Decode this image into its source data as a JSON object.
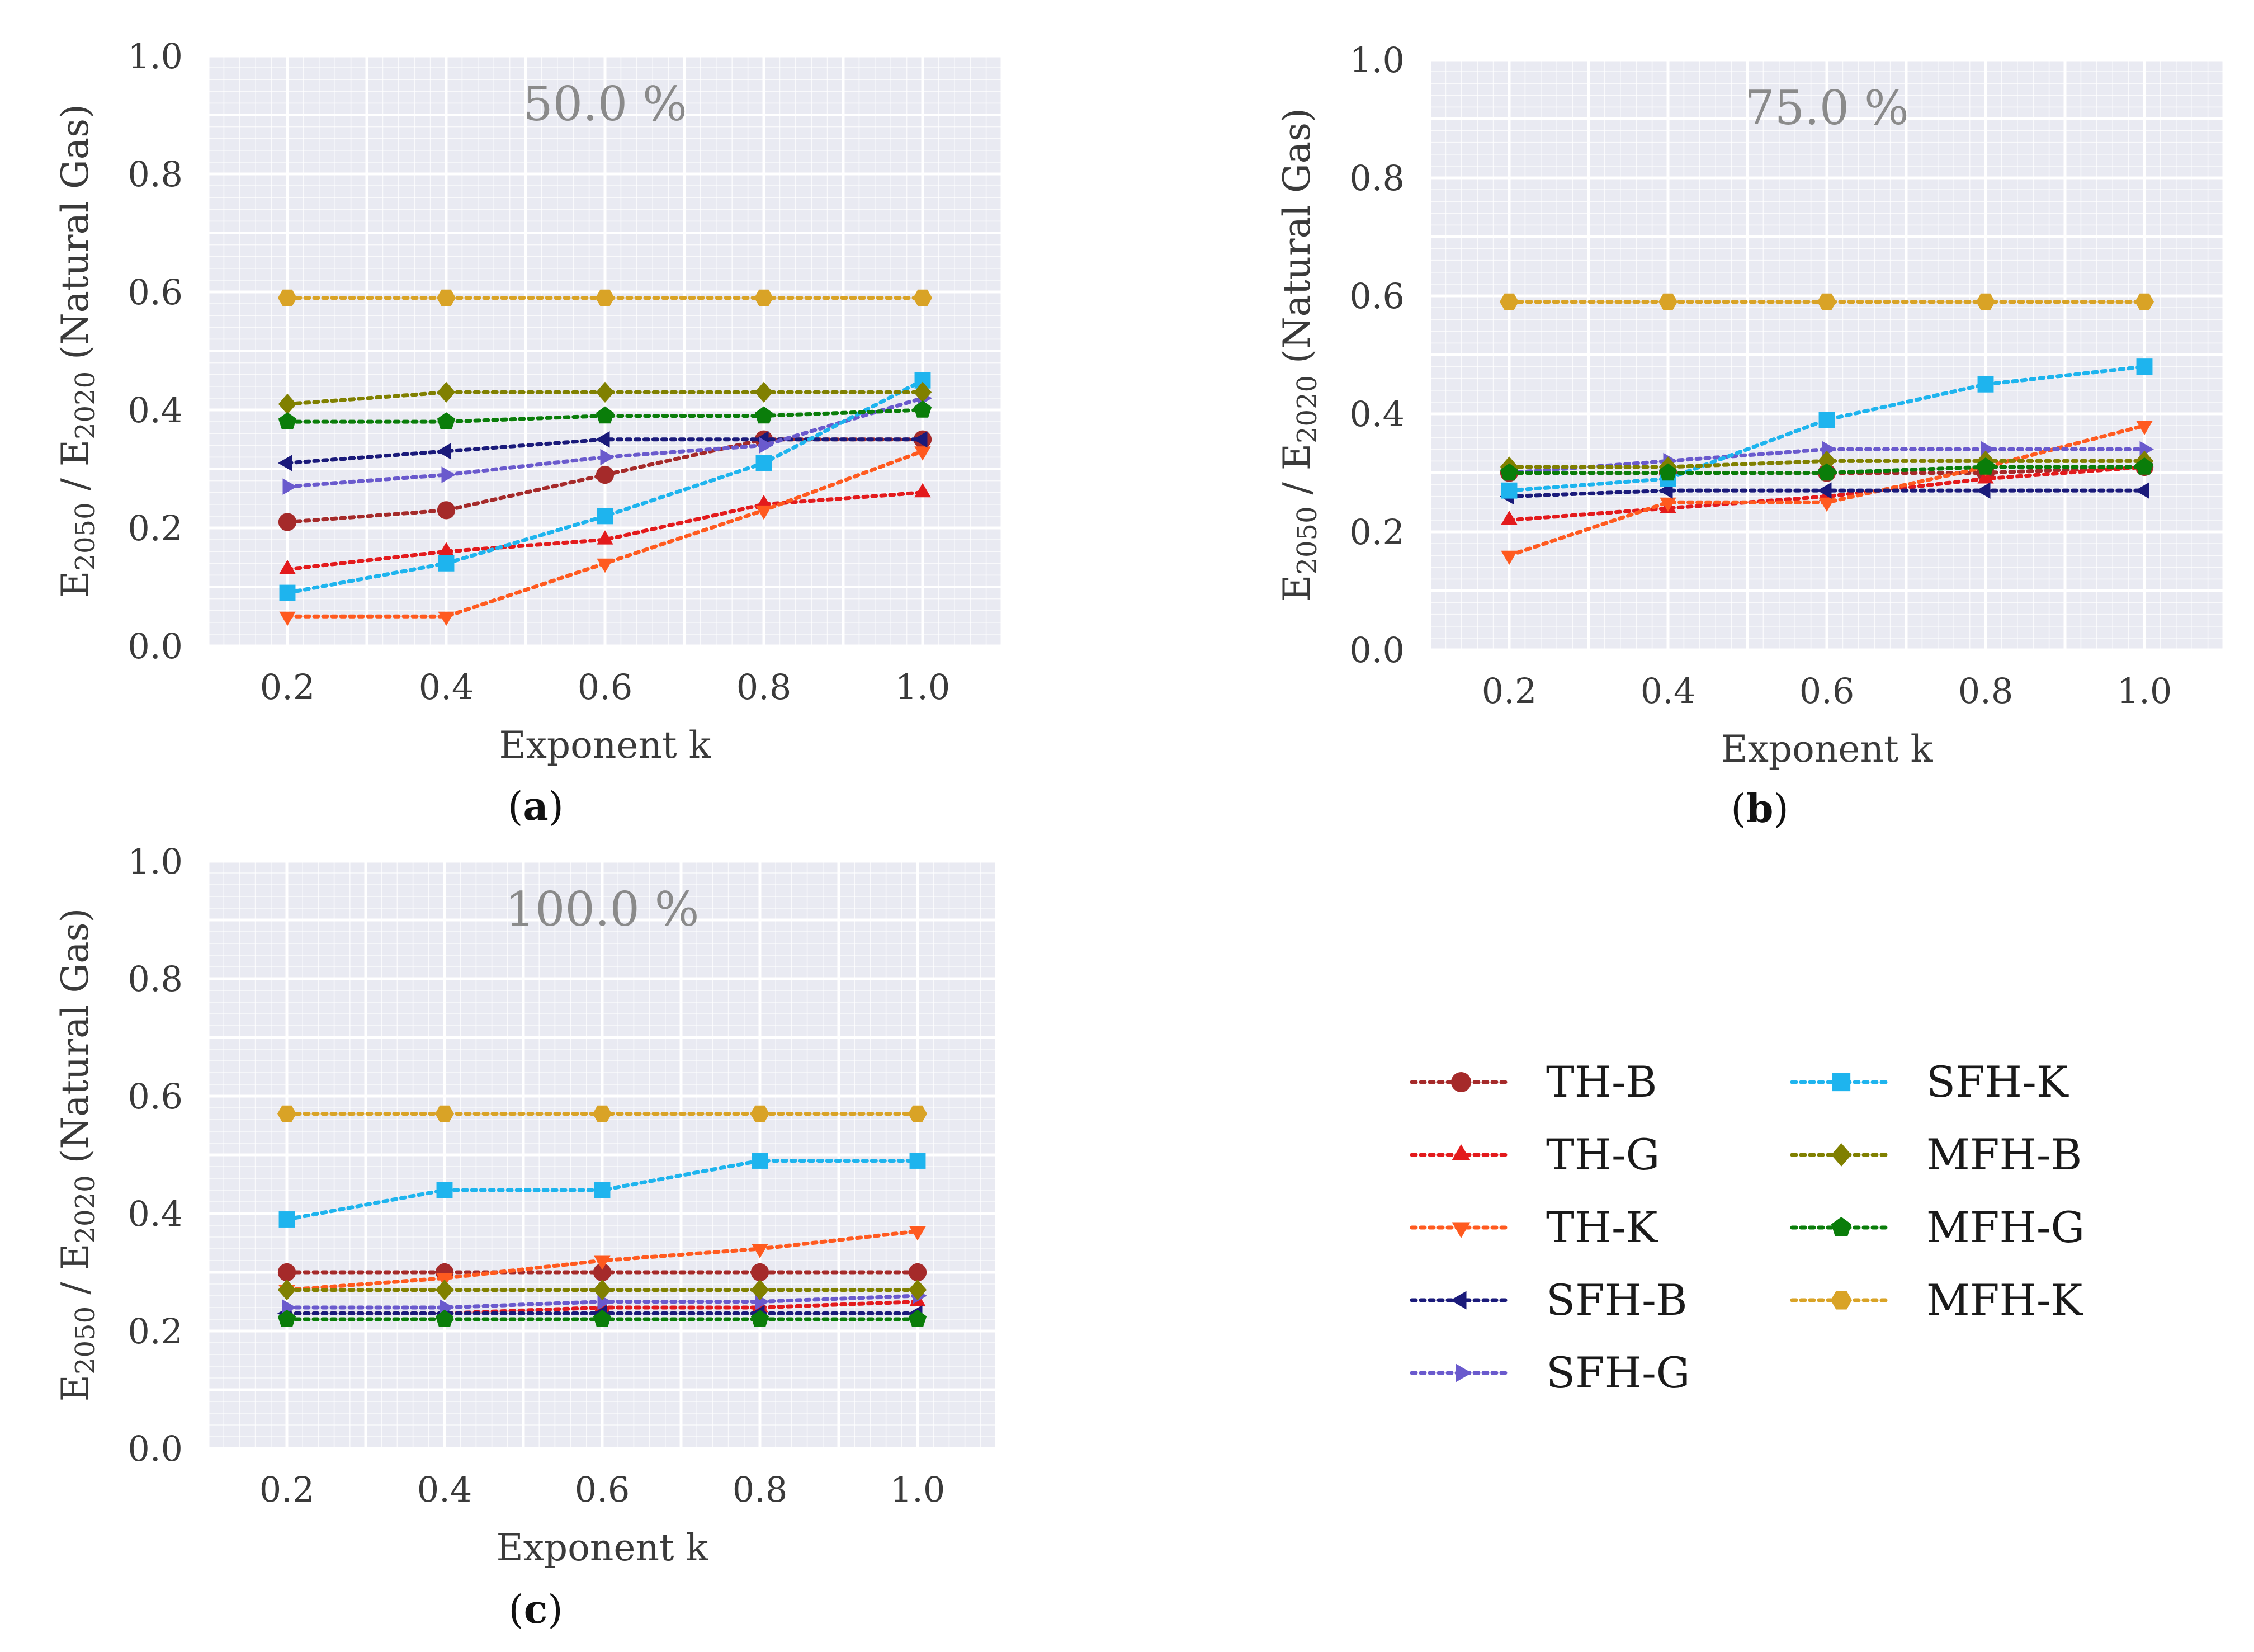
{
  "series_styles": [
    {
      "name": "TH-B",
      "color": "#a52a2a",
      "marker": "circle"
    },
    {
      "name": "TH-G",
      "color": "#e31a1c",
      "marker": "triangle-up"
    },
    {
      "name": "TH-K",
      "color": "#ff5a1f",
      "marker": "triangle-down"
    },
    {
      "name": "SFH-B",
      "color": "#1a1a7a",
      "marker": "triangle-left"
    },
    {
      "name": "SFH-G",
      "color": "#6a5acd",
      "marker": "triangle-right"
    },
    {
      "name": "SFH-K",
      "color": "#1eb4ee",
      "marker": "square"
    },
    {
      "name": "MFH-B",
      "color": "#808000",
      "marker": "diamond"
    },
    {
      "name": "MFH-G",
      "color": "#0a7d0a",
      "marker": "pentagon"
    },
    {
      "name": "MFH-K",
      "color": "#d9a326",
      "marker": "hexagon"
    }
  ],
  "chart_data": [
    {
      "type": "line",
      "panel": "(a)",
      "panel_letter": "a",
      "title": "50.0 %",
      "xlabel": "Exponent k",
      "ylabel": "E2050 / E2020 (Natural Gas)",
      "x": [
        0.2,
        0.4,
        0.6,
        0.8,
        1.0
      ],
      "xlim": [
        0.1,
        1.1
      ],
      "ylim": [
        0.0,
        1.0
      ],
      "xticks": [
        "0.2",
        "0.4",
        "0.6",
        "0.8",
        "1.0"
      ],
      "yticks": [
        "0.0",
        "0.2",
        "0.4",
        "0.6",
        "0.8",
        "1.0"
      ],
      "grid": true,
      "series": [
        {
          "name": "TH-B",
          "values": [
            0.21,
            0.23,
            0.29,
            0.35,
            0.35
          ]
        },
        {
          "name": "TH-G",
          "values": [
            0.13,
            0.16,
            0.18,
            0.24,
            0.26
          ]
        },
        {
          "name": "TH-K",
          "values": [
            0.05,
            0.05,
            0.14,
            0.23,
            0.33
          ]
        },
        {
          "name": "SFH-B",
          "values": [
            0.31,
            0.33,
            0.35,
            0.35,
            0.35
          ]
        },
        {
          "name": "SFH-G",
          "values": [
            0.27,
            0.29,
            0.32,
            0.34,
            0.42
          ]
        },
        {
          "name": "SFH-K",
          "values": [
            0.09,
            0.14,
            0.22,
            0.31,
            0.45
          ]
        },
        {
          "name": "MFH-B",
          "values": [
            0.41,
            0.43,
            0.43,
            0.43,
            0.43
          ]
        },
        {
          "name": "MFH-G",
          "values": [
            0.38,
            0.38,
            0.39,
            0.39,
            0.4
          ]
        },
        {
          "name": "MFH-K",
          "values": [
            0.59,
            0.59,
            0.59,
            0.59,
            0.59
          ]
        }
      ]
    },
    {
      "type": "line",
      "panel": "(b)",
      "panel_letter": "b",
      "title": "75.0 %",
      "xlabel": "Exponent k",
      "ylabel": "E2050 / E2020 (Natural Gas)",
      "x": [
        0.2,
        0.4,
        0.6,
        0.8,
        1.0
      ],
      "xlim": [
        0.1,
        1.1
      ],
      "ylim": [
        0.0,
        1.0
      ],
      "xticks": [
        "0.2",
        "0.4",
        "0.6",
        "0.8",
        "1.0"
      ],
      "yticks": [
        "0.0",
        "0.2",
        "0.4",
        "0.6",
        "0.8",
        "1.0"
      ],
      "grid": true,
      "series": [
        {
          "name": "TH-B",
          "values": [
            0.3,
            0.3,
            0.3,
            0.3,
            0.31
          ]
        },
        {
          "name": "TH-G",
          "values": [
            0.22,
            0.24,
            0.26,
            0.29,
            0.31
          ]
        },
        {
          "name": "TH-K",
          "values": [
            0.16,
            0.25,
            0.25,
            0.31,
            0.38
          ]
        },
        {
          "name": "SFH-B",
          "values": [
            0.26,
            0.27,
            0.27,
            0.27,
            0.27
          ]
        },
        {
          "name": "SFH-G",
          "values": [
            0.3,
            0.32,
            0.34,
            0.34,
            0.34
          ]
        },
        {
          "name": "SFH-K",
          "values": [
            0.27,
            0.29,
            0.39,
            0.45,
            0.48
          ]
        },
        {
          "name": "MFH-B",
          "values": [
            0.31,
            0.31,
            0.32,
            0.32,
            0.32
          ]
        },
        {
          "name": "MFH-G",
          "values": [
            0.3,
            0.3,
            0.3,
            0.31,
            0.31
          ]
        },
        {
          "name": "MFH-K",
          "values": [
            0.59,
            0.59,
            0.59,
            0.59,
            0.59
          ]
        }
      ]
    },
    {
      "type": "line",
      "panel": "(c)",
      "panel_letter": "c",
      "title": "100.0 %",
      "xlabel": "Exponent k",
      "ylabel": "E2050 / E2020 (Natural Gas)",
      "x": [
        0.2,
        0.4,
        0.6,
        0.8,
        1.0
      ],
      "xlim": [
        0.1,
        1.1
      ],
      "ylim": [
        0.0,
        1.0
      ],
      "xticks": [
        "0.2",
        "0.4",
        "0.6",
        "0.8",
        "1.0"
      ],
      "yticks": [
        "0.0",
        "0.2",
        "0.4",
        "0.6",
        "0.8",
        "1.0"
      ],
      "grid": true,
      "series": [
        {
          "name": "TH-B",
          "values": [
            0.3,
            0.3,
            0.3,
            0.3,
            0.3
          ]
        },
        {
          "name": "TH-G",
          "values": [
            0.23,
            0.23,
            0.24,
            0.24,
            0.25
          ]
        },
        {
          "name": "TH-K",
          "values": [
            0.27,
            0.29,
            0.32,
            0.34,
            0.37
          ]
        },
        {
          "name": "SFH-B",
          "values": [
            0.23,
            0.23,
            0.23,
            0.23,
            0.23
          ]
        },
        {
          "name": "SFH-G",
          "values": [
            0.24,
            0.24,
            0.25,
            0.25,
            0.26
          ]
        },
        {
          "name": "SFH-K",
          "values": [
            0.39,
            0.44,
            0.44,
            0.49,
            0.49
          ]
        },
        {
          "name": "MFH-B",
          "values": [
            0.27,
            0.27,
            0.27,
            0.27,
            0.27
          ]
        },
        {
          "name": "MFH-G",
          "values": [
            0.22,
            0.22,
            0.22,
            0.22,
            0.22
          ]
        },
        {
          "name": "MFH-K",
          "values": [
            0.57,
            0.57,
            0.57,
            0.57,
            0.57
          ]
        }
      ]
    }
  ]
}
